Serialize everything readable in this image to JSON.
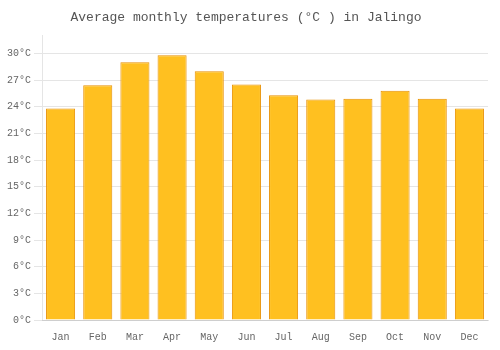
{
  "chart_data": {
    "type": "bar",
    "title": "Average monthly temperatures (°C ) in Jalingo",
    "categories": [
      "Jan",
      "Feb",
      "Mar",
      "Apr",
      "May",
      "Jun",
      "Jul",
      "Aug",
      "Sep",
      "Oct",
      "Nov",
      "Dec"
    ],
    "values": [
      23.8,
      26.4,
      29.0,
      29.8,
      28.0,
      26.5,
      25.3,
      24.8,
      24.9,
      25.8,
      24.9,
      23.8
    ],
    "color": "#FFC020",
    "ylim": [
      0,
      32
    ],
    "yticks": [
      {
        "value": 0,
        "label": "0°C"
      },
      {
        "value": 3,
        "label": "3°C"
      },
      {
        "value": 6,
        "label": "6°C"
      },
      {
        "value": 9,
        "label": "9°C"
      },
      {
        "value": 12,
        "label": "12°C"
      },
      {
        "value": 15,
        "label": "15°C"
      },
      {
        "value": 18,
        "label": "18°C"
      },
      {
        "value": 21,
        "label": "21°C"
      },
      {
        "value": 24,
        "label": "24°C"
      },
      {
        "value": 27,
        "label": "27°C"
      },
      {
        "value": 30,
        "label": "30°C"
      }
    ],
    "grid": true
  }
}
